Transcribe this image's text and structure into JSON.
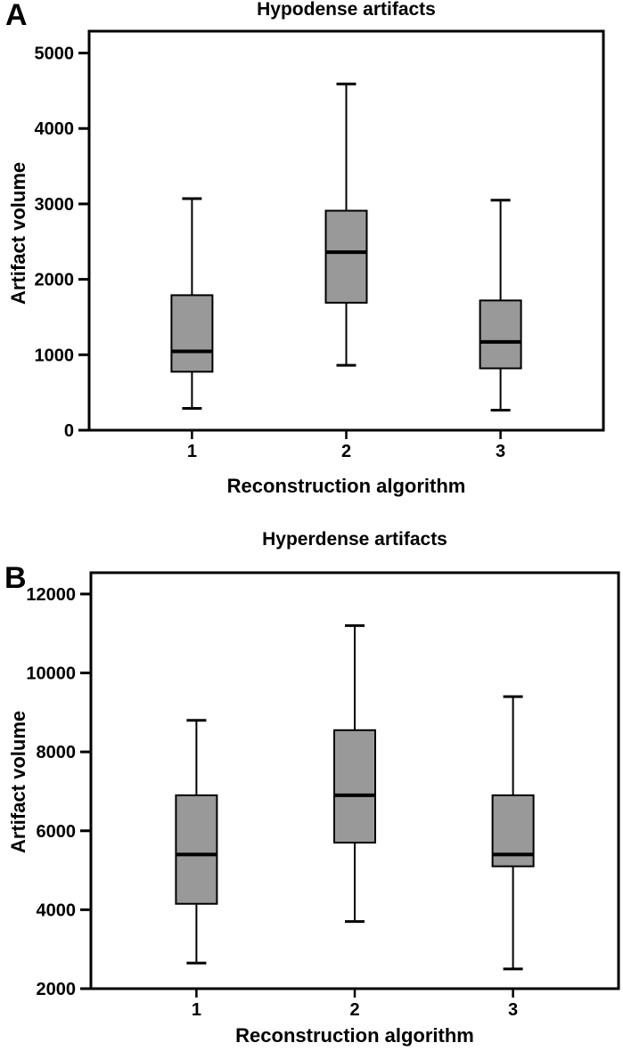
{
  "figure": {
    "background": "#ffffff",
    "box_fill": "#999999",
    "line_color": "#000000"
  },
  "chart_data": [
    {
      "type": "box",
      "panel_label": "A",
      "title": "Hypodense artifacts",
      "xlabel": "Reconstruction algorithm",
      "ylabel": "Artifact volume",
      "categories": [
        "1",
        "2",
        "3"
      ],
      "yticks": [
        0,
        1000,
        2000,
        3000,
        4000,
        5000
      ],
      "ylim": [
        0,
        5290
      ],
      "grid": false,
      "legend": "none",
      "boxes": [
        {
          "category": "1",
          "whisker_low": 290,
          "q1": 775,
          "median": 1045,
          "q3": 1790,
          "whisker_high": 3070
        },
        {
          "category": "2",
          "whisker_low": 860,
          "q1": 1690,
          "median": 2360,
          "q3": 2910,
          "whisker_high": 4590
        },
        {
          "category": "3",
          "whisker_low": 265,
          "q1": 820,
          "median": 1170,
          "q3": 1720,
          "whisker_high": 3050
        }
      ]
    },
    {
      "type": "box",
      "panel_label": "B",
      "title": "Hyperdense artifacts",
      "xlabel": "Reconstruction algorithm",
      "ylabel": "Artifact volume",
      "categories": [
        "1",
        "2",
        "3"
      ],
      "yticks": [
        2000,
        4000,
        6000,
        8000,
        10000,
        12000
      ],
      "ylim": [
        2000,
        12540
      ],
      "grid": false,
      "legend": "none",
      "boxes": [
        {
          "category": "1",
          "whisker_low": 2650,
          "q1": 4150,
          "median": 5400,
          "q3": 6900,
          "whisker_high": 8800
        },
        {
          "category": "2",
          "whisker_low": 3700,
          "q1": 5700,
          "median": 6900,
          "q3": 8550,
          "whisker_high": 11200
        },
        {
          "category": "3",
          "whisker_low": 2500,
          "q1": 5100,
          "median": 5400,
          "q3": 6900,
          "whisker_high": 9400
        }
      ]
    }
  ]
}
